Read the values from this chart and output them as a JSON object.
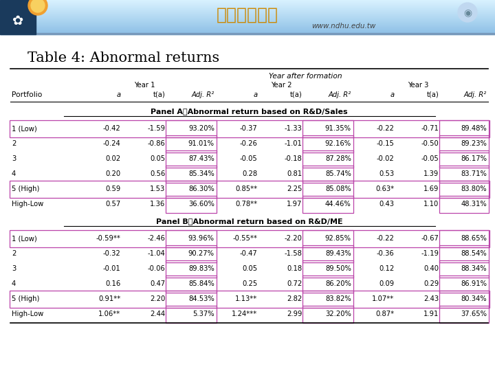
{
  "title": "Table 4: Abnormal returns",
  "header_row": [
    "Portfolio",
    "a",
    "t(a)",
    "Adj. R²",
    "a",
    "t(a)",
    "Adj. R²",
    "a",
    "t(a)",
    "Adj. R²"
  ],
  "year_header": "Year after formation",
  "year1_label": "Year 1",
  "year2_label": "Year 2",
  "year3_label": "Year 3",
  "panel_a_title": "Panel A：Abnormal return based on R&D/Sales",
  "panel_b_title": "Panel B：Abnormal return based on R&D/ME",
  "panel_a_rows": [
    [
      "1 (Low)",
      "-0.42",
      "-1.59",
      "93.20%",
      "-0.37",
      "-1.33",
      "91.35%",
      "-0.22",
      "-0.71",
      "89.48%"
    ],
    [
      "2",
      "-0.24",
      "-0.86",
      "91.01%",
      "-0.26",
      "-1.01",
      "92.16%",
      "-0.15",
      "-0.50",
      "89.23%"
    ],
    [
      "3",
      "0.02",
      "0.05",
      "87.43%",
      "-0.05",
      "-0.18",
      "87.28%",
      "-0.02",
      "-0.05",
      "86.17%"
    ],
    [
      "4",
      "0.20",
      "0.56",
      "85.34%",
      "0.28",
      "0.81",
      "85.74%",
      "0.53",
      "1.39",
      "83.71%"
    ],
    [
      "5 (High)",
      "0.59",
      "1.53",
      "86.30%",
      "0.85**",
      "2.25",
      "85.08%",
      "0.63*",
      "1.69",
      "83.80%"
    ],
    [
      "High-Low",
      "0.57",
      "1.36",
      "36.60%",
      "0.78**",
      "1.97",
      "44.46%",
      "0.43",
      "1.10",
      "48.31%"
    ]
  ],
  "panel_b_rows": [
    [
      "1 (Low)",
      "-0.59**",
      "-2.46",
      "93.96%",
      "-0.55**",
      "-2.20",
      "92.85%",
      "-0.22",
      "-0.67",
      "88.65%"
    ],
    [
      "2",
      "-0.32",
      "-1.04",
      "90.27%",
      "-0.47",
      "-1.58",
      "89.43%",
      "-0.36",
      "-1.19",
      "88.54%"
    ],
    [
      "3",
      "-0.01",
      "-0.06",
      "89.83%",
      "0.05",
      "0.18",
      "89.50%",
      "0.12",
      "0.40",
      "88.34%"
    ],
    [
      "4",
      "0.16",
      "0.47",
      "85.84%",
      "0.25",
      "0.72",
      "86.20%",
      "0.09",
      "0.29",
      "86.91%"
    ],
    [
      "5 (High)",
      "0.91**",
      "2.20",
      "84.53%",
      "1.13**",
      "2.82",
      "83.82%",
      "1.07**",
      "2.43",
      "80.34%"
    ],
    [
      "High-Low",
      "1.06**",
      "2.44",
      "5.37%",
      "1.24***",
      "2.99",
      "32.20%",
      "0.87*",
      "1.91",
      "37.65%"
    ]
  ],
  "highlight_rows_panelA": [
    0,
    4
  ],
  "highlight_rows_panelB": [
    0,
    4
  ],
  "highlight_cols": [
    3,
    6,
    9
  ],
  "bg_color": "#ffffff",
  "highlight_border_color": "#bb44aa",
  "font_size": 7.2,
  "title_font_size": 15,
  "panel_font_size": 8.0,
  "banner_top_color": "#aacce8",
  "banner_mid_color": "#cce0f0",
  "url_text": "www.ndhu.edu.tw"
}
